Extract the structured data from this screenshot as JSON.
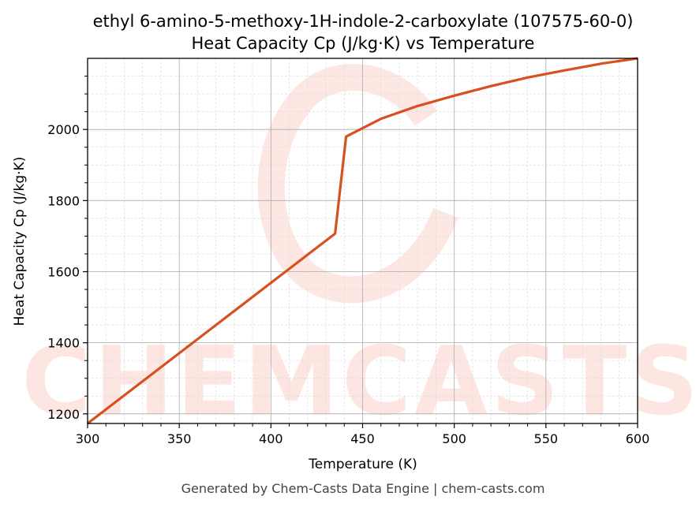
{
  "chart_data": {
    "type": "line",
    "title_line1": "ethyl 6-amino-5-methoxy-1H-indole-2-carboxylate (107575-60-0)",
    "title_line2": "Heat Capacity Cp (J/kg·K) vs Temperature",
    "xlabel": "Temperature (K)",
    "ylabel": "Heat Capacity Cp (J/kg·K)",
    "xlim": [
      300,
      600
    ],
    "ylim": [
      1173,
      2200
    ],
    "xticks": [
      300,
      350,
      400,
      450,
      500,
      550,
      600
    ],
    "yticks": [
      1200,
      1400,
      1600,
      1800,
      2000
    ],
    "grid": true,
    "series": [
      {
        "name": "Cp",
        "color": "#d95020",
        "x": [
          300,
          435,
          441,
          460,
          480,
          500,
          520,
          540,
          560,
          580,
          600
        ],
        "y": [
          1173,
          1707,
          1980,
          2030,
          2066,
          2095,
          2122,
          2146,
          2166,
          2185,
          2200
        ]
      }
    ],
    "watermark": "CHEMCASTS",
    "footer": "Generated by Chem-Casts Data Engine | chem-casts.com"
  }
}
